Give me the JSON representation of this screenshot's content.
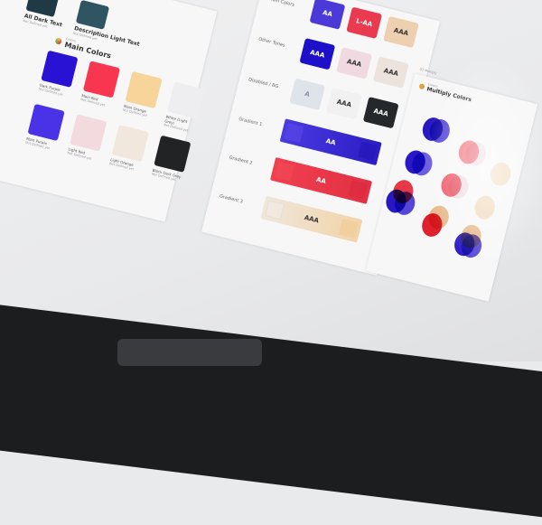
{
  "left_card": {
    "top_swatches": [
      {
        "name": "All Dark Text",
        "note": "Not Defined yet",
        "color": "#1f3a44"
      },
      {
        "name": "Description Light Text",
        "note": "Not Defined yet",
        "color": "#2f5563"
      }
    ],
    "section_kicker": "Colors",
    "section_title": "Main Colors",
    "swatches": [
      {
        "name": "Dark Purple",
        "note": "Not Defined yet",
        "color": "#2a12d4"
      },
      {
        "name": "Main Red",
        "note": "Not Defined yet",
        "color": "#f8364f"
      },
      {
        "name": "Main Orange",
        "note": "Not Defined yet",
        "color": "#f6d49a"
      },
      {
        "name": "White (Light Grey)",
        "note": "Not Defined yet",
        "color": "#eeeef0"
      },
      {
        "name": "Main Purple",
        "note": "Not Defined yet",
        "color": "#4a32e6"
      },
      {
        "name": "Light Red",
        "note": "Not Defined yet",
        "color": "#f2dade"
      },
      {
        "name": "Light Orange",
        "note": "Not Defined yet",
        "color": "#f1e7dc"
      },
      {
        "name": "Black Dark Grey",
        "note": "Not Defined yet",
        "color": "#222324"
      }
    ]
  },
  "middle_card": {
    "rows": [
      {
        "label": "Main Colors",
        "swatches": [
          {
            "text": "AA",
            "bg": "#4b3ad8",
            "fg": "#ffffff"
          },
          {
            "text": "L-AA",
            "bg": "#ea3a50",
            "fg": "#ffffff"
          },
          {
            "text": "AAA",
            "bg": "#ecd0b0",
            "fg": "#333333"
          }
        ]
      },
      {
        "label": "Other Tones",
        "swatches": [
          {
            "text": "AAA",
            "bg": "#1d10c8",
            "fg": "#ffffff"
          },
          {
            "text": "AAA",
            "bg": "#f0d9e0",
            "fg": "#333333"
          },
          {
            "text": "AAA",
            "bg": "#ece3dc",
            "fg": "#333333"
          }
        ]
      },
      {
        "label": "Disabled / BG",
        "swatches": [
          {
            "text": "A",
            "bg": "#dfe3ea",
            "fg": "#8a94a6"
          },
          {
            "text": "AAA",
            "bg": "#f1f1f2",
            "fg": "#333333"
          },
          {
            "text": "AAA",
            "bg": "#25282a",
            "fg": "#ffffff"
          }
        ]
      }
    ],
    "gradients": [
      {
        "label": "Gradient 1",
        "text": "AA",
        "from": "#4a3ae0",
        "to": "#2b1cc4",
        "fg": "#ffffff"
      },
      {
        "label": "Gradient 2",
        "text": "AA",
        "from": "#f0404f",
        "to": "#e23044",
        "fg": "#ffffff"
      },
      {
        "label": "Gradient 3",
        "text": "AAA",
        "from": "#efe6dc",
        "to": "#f2d4a8",
        "fg": "#333333"
      }
    ]
  },
  "right_card": {
    "kicker": "03 Multiply",
    "section_kicker": "Colors",
    "title": "Multiply Colors"
  }
}
